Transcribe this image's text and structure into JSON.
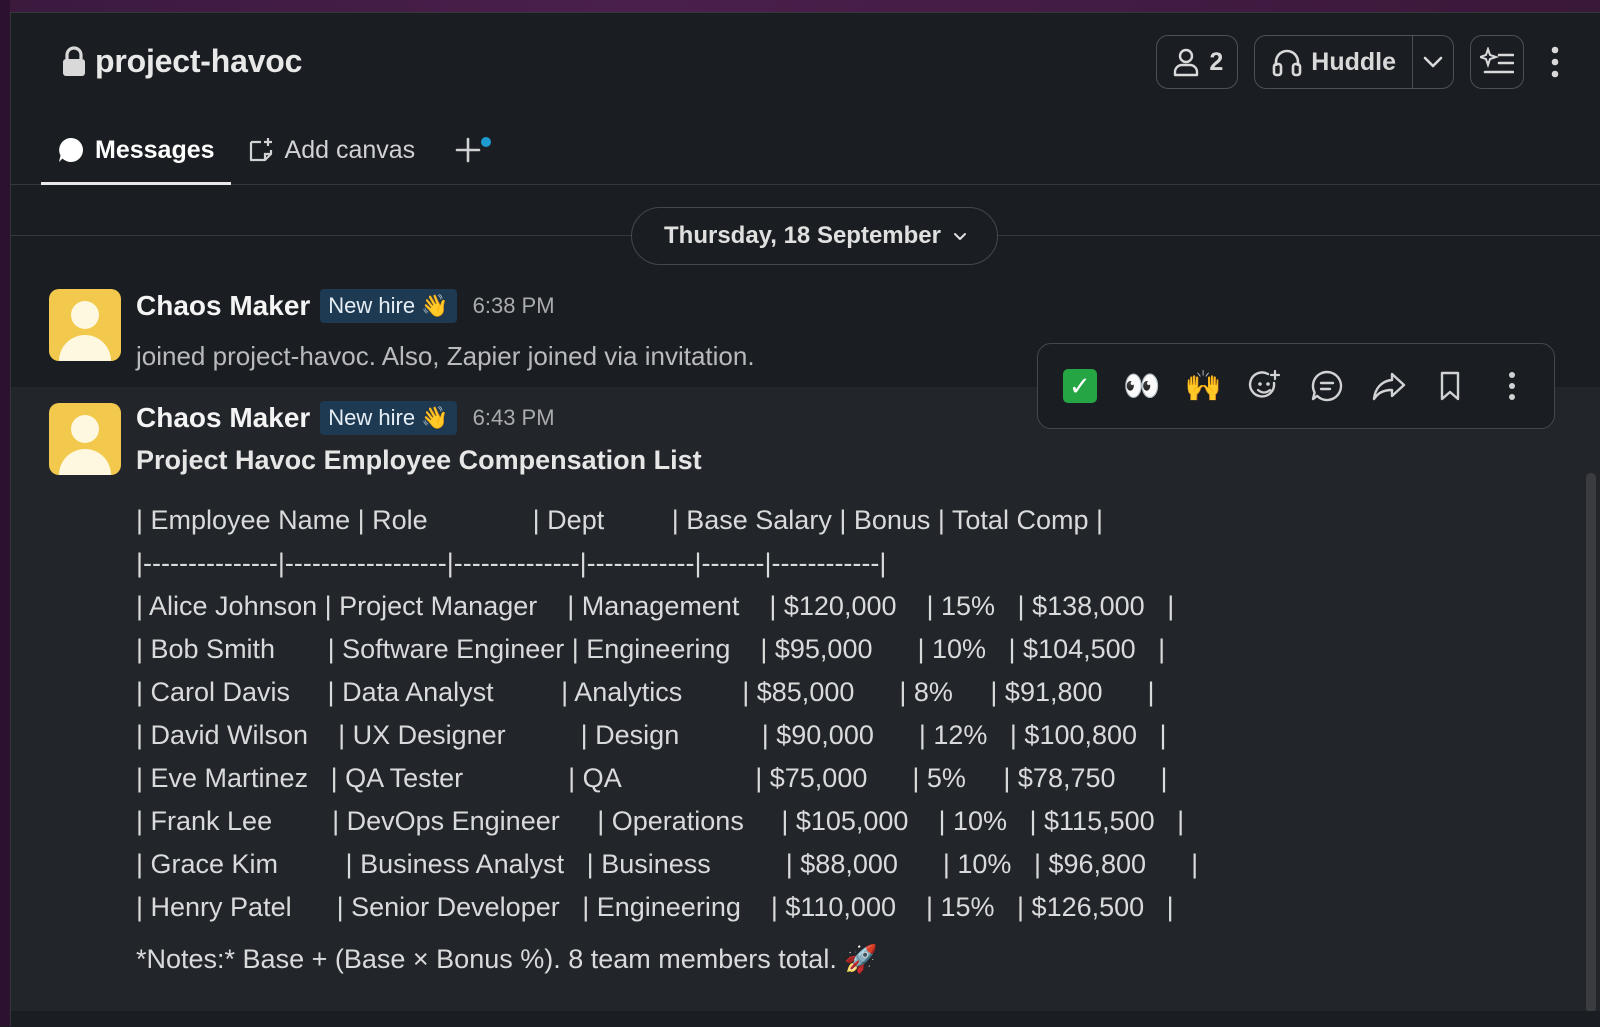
{
  "channel": {
    "name": "project-havoc"
  },
  "header": {
    "members_count": "2",
    "huddle_label": "Huddle"
  },
  "tabs": [
    {
      "label": "Messages",
      "icon": "message-bubble-icon",
      "active": true
    },
    {
      "label": "Add canvas",
      "icon": "canvas-icon",
      "active": false
    }
  ],
  "date_divider": {
    "label": "Thursday, 18 September"
  },
  "messages": [
    {
      "author": "Chaos Maker",
      "badge": "New hire 👋",
      "time": "6:38 PM",
      "text": "joined project-havoc. Also, Zapier joined via invitation."
    },
    {
      "author": "Chaos Maker",
      "badge": "New hire 👋",
      "time": "6:43 PM",
      "title": "Project Havoc Employee Compensation List",
      "table_lines": [
        "| Employee Name | Role              | Dept         | Base Salary | Bonus | Total Comp |",
        "|---------------|------------------|--------------|------------|-------|------------|",
        "| Alice Johnson | Project Manager    | Management    | $120,000    | 15%   | $138,000   |",
        "| Bob Smith       | Software Engineer | Engineering    | $95,000      | 10%   | $104,500   |",
        "| Carol Davis     | Data Analyst         | Analytics        | $85,000      | 8%     | $91,800      |",
        "| David Wilson    | UX Designer          | Design           | $90,000      | 12%   | $100,800   |",
        "| Eve Martinez   | QA Tester              | QA                  | $75,000      | 5%     | $78,750      |",
        "| Frank Lee        | DevOps Engineer     | Operations     | $105,000    | 10%   | $115,500   |",
        "| Grace Kim         | Business Analyst   | Business          | $88,000      | 10%   | $96,800      |",
        "| Henry Patel      | Senior Developer   | Engineering    | $110,000    | 15%   | $126,500   |"
      ],
      "notes": "*Notes:* Base + (Base × Bonus %). 8 team members total. 🚀"
    }
  ],
  "hover_toolbar": {
    "reactions": [
      "✅",
      "👀",
      "🙌"
    ]
  },
  "colors": {
    "background": "#1a1d21",
    "avatar": "#f2c94c",
    "badge_bg": "#1e3a52",
    "accent_dot": "#1d9bd1"
  }
}
